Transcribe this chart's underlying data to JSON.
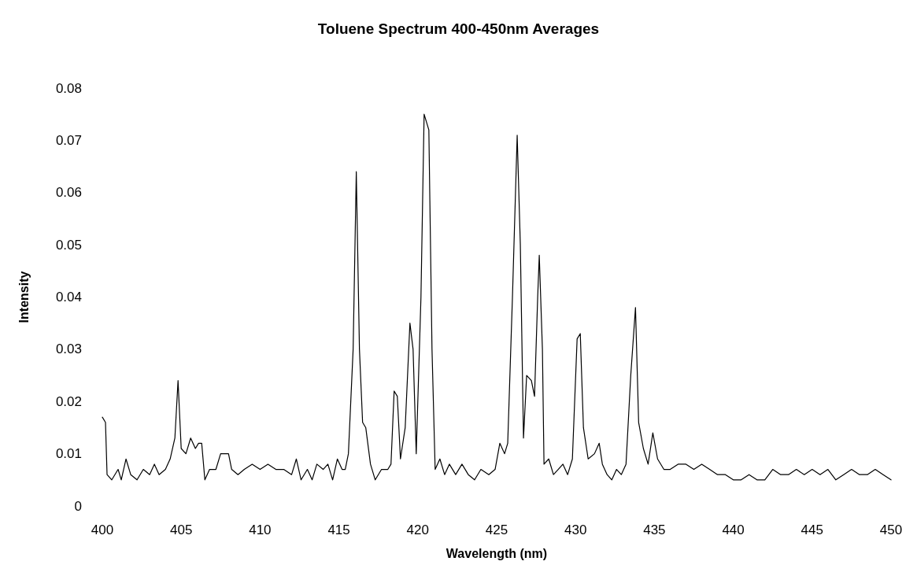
{
  "chart_data": {
    "type": "line",
    "title": "Toluene Spectrum 400-450nm Averages",
    "xlabel": "Wavelength (nm)",
    "ylabel": "Intensity",
    "xlim": [
      400,
      450
    ],
    "xticks": [
      400,
      405,
      410,
      415,
      420,
      425,
      430,
      435,
      440,
      445,
      450
    ],
    "ylim": [
      0,
      0.08
    ],
    "yticks": [
      0,
      0.01,
      0.02,
      0.03,
      0.04,
      0.05,
      0.06,
      0.07,
      0.08
    ],
    "grid": false,
    "marker": "none",
    "line_style": "solid",
    "series": [
      {
        "color": "#000000",
        "x": [
          400,
          400.2,
          400.3,
          400.6,
          401,
          401.2,
          401.5,
          401.8,
          402.2,
          402.6,
          403,
          403.3,
          403.6,
          404,
          404.3,
          404.6,
          404.8,
          405.0,
          405.3,
          405.6,
          405.9,
          406.1,
          406.3,
          406.5,
          406.8,
          407.2,
          407.5,
          408.0,
          408.2,
          408.6,
          409,
          409.5,
          410,
          410.5,
          411,
          411.5,
          412,
          412.3,
          412.6,
          413,
          413.3,
          413.6,
          414,
          414.3,
          414.6,
          414.9,
          415.2,
          415.4,
          415.6,
          415.9,
          416.1,
          416.3,
          416.5,
          416.7,
          417,
          417.3,
          417.7,
          418.1,
          418.3,
          418.5,
          418.7,
          418.9,
          419.2,
          419.5,
          419.7,
          419.9,
          420.2,
          420.4,
          420.7,
          420.9,
          421.1,
          421.4,
          421.7,
          422,
          422.4,
          422.8,
          423.2,
          423.6,
          424,
          424.5,
          424.9,
          425.2,
          425.5,
          425.7,
          426.0,
          426.3,
          426.5,
          426.7,
          426.9,
          427.2,
          427.4,
          427.6,
          427.7,
          427.9,
          428.0,
          428.3,
          428.6,
          428.9,
          429.2,
          429.5,
          429.8,
          430.1,
          430.3,
          430.5,
          430.8,
          431.2,
          431.5,
          431.7,
          432,
          432.3,
          432.6,
          432.9,
          433.2,
          433.5,
          433.8,
          434.0,
          434.3,
          434.6,
          434.9,
          435.2,
          435.6,
          436,
          436.5,
          437,
          437.5,
          438,
          438.5,
          439,
          439.5,
          440,
          440.5,
          441,
          441.5,
          442,
          442.5,
          443,
          443.5,
          444,
          444.5,
          445,
          445.5,
          446,
          446.5,
          447,
          447.5,
          448,
          448.5,
          449,
          449.5,
          450
        ],
        "values": [
          0.017,
          0.016,
          0.006,
          0.005,
          0.007,
          0.005,
          0.009,
          0.006,
          0.005,
          0.007,
          0.006,
          0.008,
          0.006,
          0.007,
          0.009,
          0.013,
          0.024,
          0.011,
          0.01,
          0.013,
          0.011,
          0.012,
          0.012,
          0.005,
          0.007,
          0.007,
          0.01,
          0.01,
          0.007,
          0.006,
          0.007,
          0.008,
          0.007,
          0.008,
          0.007,
          0.007,
          0.006,
          0.009,
          0.005,
          0.007,
          0.005,
          0.008,
          0.007,
          0.008,
          0.005,
          0.009,
          0.007,
          0.007,
          0.01,
          0.03,
          0.064,
          0.03,
          0.016,
          0.015,
          0.008,
          0.005,
          0.007,
          0.007,
          0.008,
          0.022,
          0.021,
          0.009,
          0.015,
          0.035,
          0.03,
          0.01,
          0.04,
          0.075,
          0.072,
          0.03,
          0.007,
          0.009,
          0.006,
          0.008,
          0.006,
          0.008,
          0.006,
          0.005,
          0.007,
          0.006,
          0.007,
          0.012,
          0.01,
          0.012,
          0.04,
          0.071,
          0.05,
          0.013,
          0.025,
          0.024,
          0.021,
          0.04,
          0.048,
          0.03,
          0.008,
          0.009,
          0.006,
          0.007,
          0.008,
          0.006,
          0.009,
          0.032,
          0.033,
          0.015,
          0.009,
          0.01,
          0.012,
          0.008,
          0.006,
          0.005,
          0.007,
          0.006,
          0.008,
          0.025,
          0.038,
          0.016,
          0.011,
          0.008,
          0.014,
          0.009,
          0.007,
          0.007,
          0.008,
          0.008,
          0.007,
          0.008,
          0.007,
          0.006,
          0.006,
          0.005,
          0.005,
          0.006,
          0.005,
          0.005,
          0.007,
          0.006,
          0.006,
          0.007,
          0.006,
          0.007,
          0.006,
          0.007,
          0.005,
          0.006,
          0.007,
          0.006,
          0.006,
          0.007,
          0.006,
          0.005
        ]
      }
    ]
  }
}
